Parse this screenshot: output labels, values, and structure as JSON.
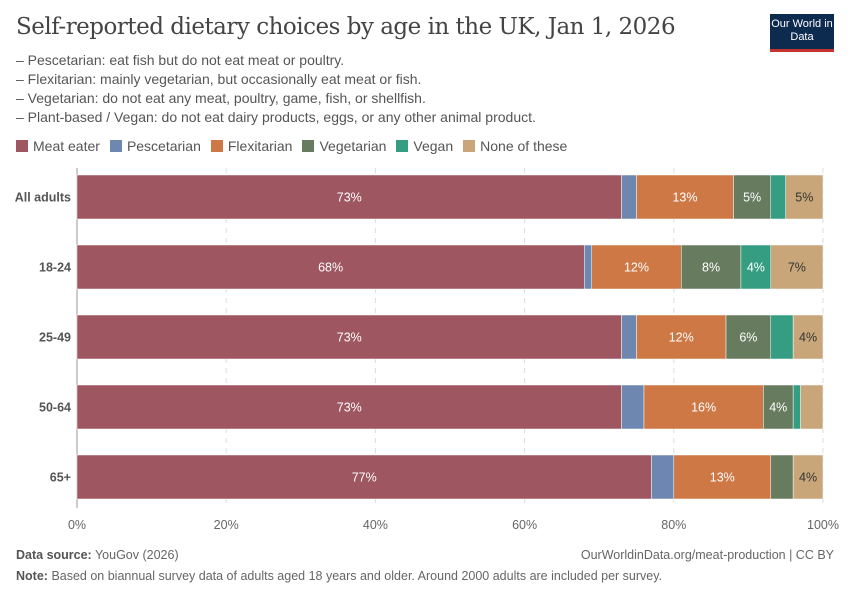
{
  "title": "Self-reported dietary choices by age in the UK, Jan 1, 2026",
  "subtitle": [
    "– Pescetarian: eat fish but do not eat meat or poultry.",
    "– Flexitarian: mainly vegetarian, but occasionally eat meat or fish.",
    "– Vegetarian: do not eat any meat, poultry, game, fish, or shellfish.",
    "– Plant-based / Vegan: do not eat dairy products, eggs, or any other animal product."
  ],
  "logo": "Our World in Data",
  "footer": {
    "source_label": "Data source:",
    "source": "YouGov (2026)",
    "url": "OurWorldinData.org/meat-production | CC BY",
    "note_label": "Note:",
    "note": "Based on biannual survey data of adults aged 18 years and older. Around 2000 adults are included per survey."
  },
  "chart_data": {
    "type": "bar",
    "orientation": "horizontal",
    "stacked": true,
    "categories": [
      "All adults",
      "18-24",
      "25-49",
      "50-64",
      "65+"
    ],
    "series": [
      {
        "name": "Meat eater",
        "color": "#9e5660",
        "values": [
          73,
          68,
          73,
          73,
          77
        ]
      },
      {
        "name": "Pescetarian",
        "color": "#6d87b0",
        "values": [
          2,
          1,
          2,
          3,
          3
        ]
      },
      {
        "name": "Flexitarian",
        "color": "#cd7845",
        "values": [
          13,
          12,
          12,
          16,
          13
        ]
      },
      {
        "name": "Vegetarian",
        "color": "#677c5f",
        "values": [
          5,
          8,
          6,
          4,
          3
        ]
      },
      {
        "name": "Vegan",
        "color": "#359e82",
        "values": [
          2,
          4,
          3,
          1,
          0
        ]
      },
      {
        "name": "None of these",
        "color": "#c8a679",
        "values": [
          5,
          7,
          4,
          3,
          4
        ]
      }
    ],
    "xlim": [
      0,
      100
    ],
    "xticks": [
      "0%",
      "20%",
      "40%",
      "60%",
      "80%",
      "100%"
    ],
    "grid": true,
    "legend": "top-left"
  }
}
